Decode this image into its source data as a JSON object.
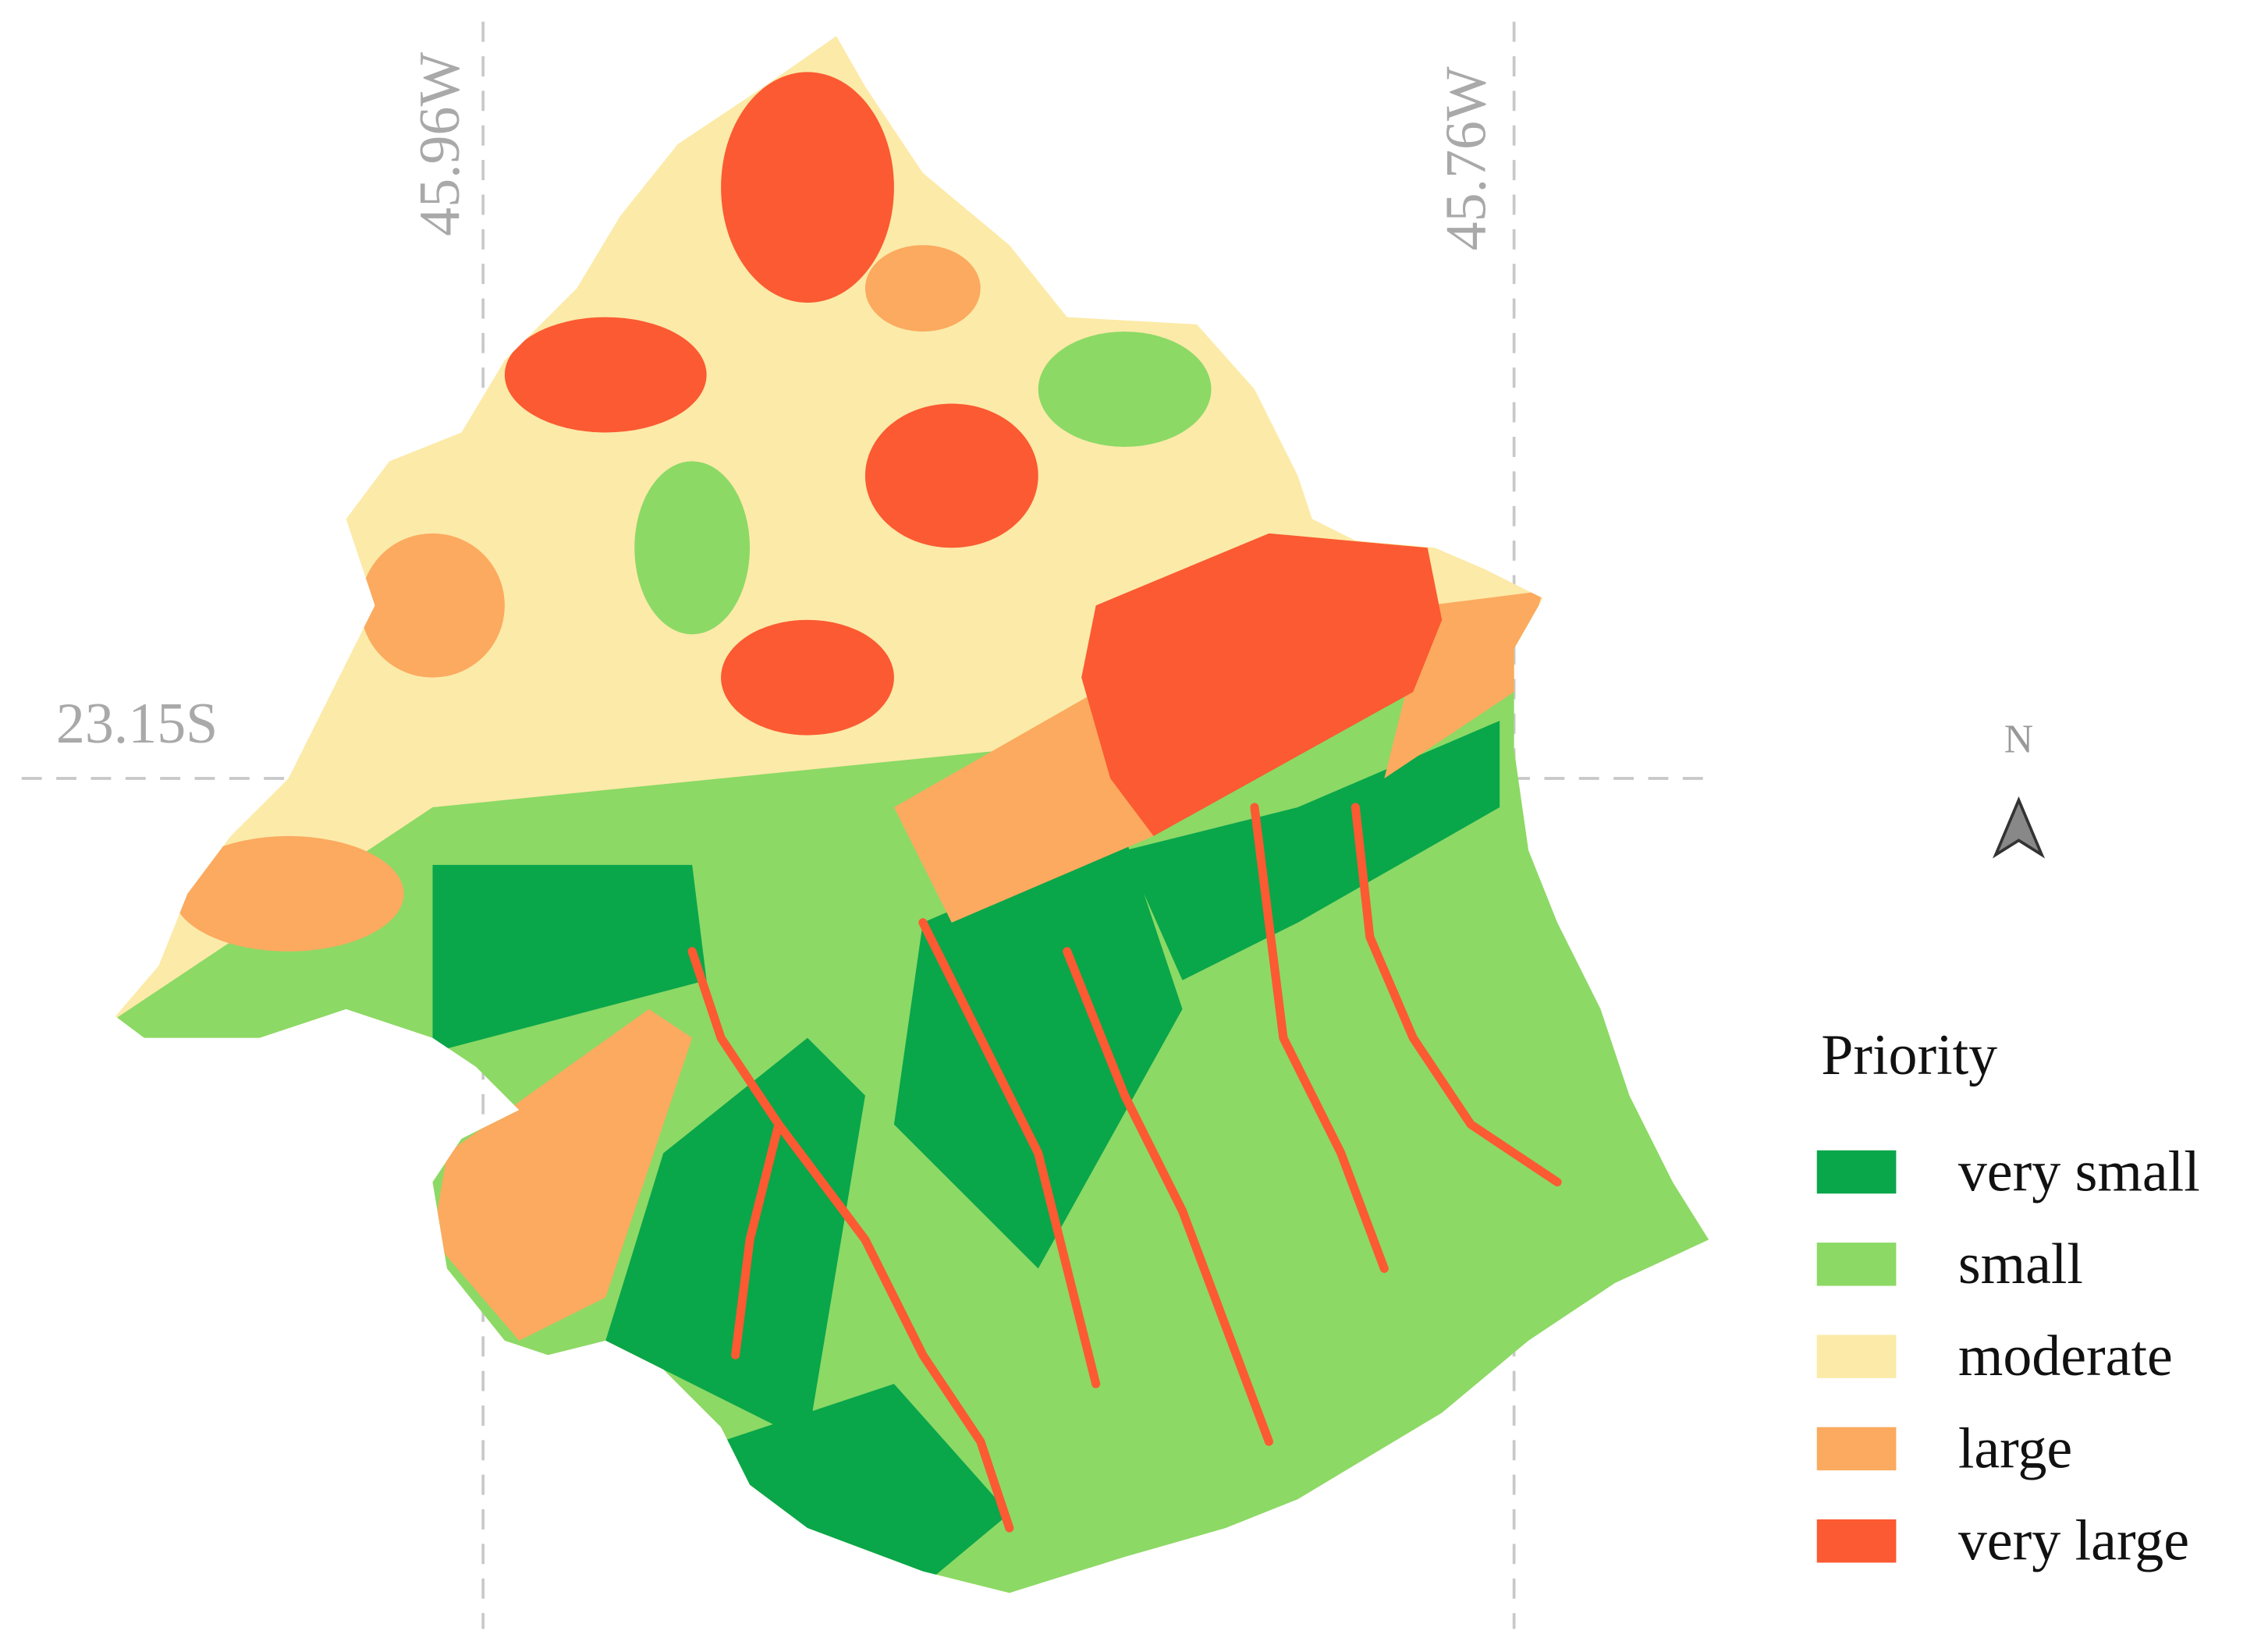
{
  "graticule": {
    "longitudes": [
      "45.96W",
      "45.76W"
    ],
    "latitude": "23.15S"
  },
  "north_arrow": {
    "label": "N"
  },
  "legend": {
    "title": "Priority",
    "items": [
      {
        "label": "very small",
        "color": "#0aa64a"
      },
      {
        "label": "small",
        "color": "#8cd966"
      },
      {
        "label": "moderate",
        "color": "#fceaa8"
      },
      {
        "label": "large",
        "color": "#fbaa5f"
      },
      {
        "label": "very large",
        "color": "#fb5a32"
      }
    ]
  }
}
